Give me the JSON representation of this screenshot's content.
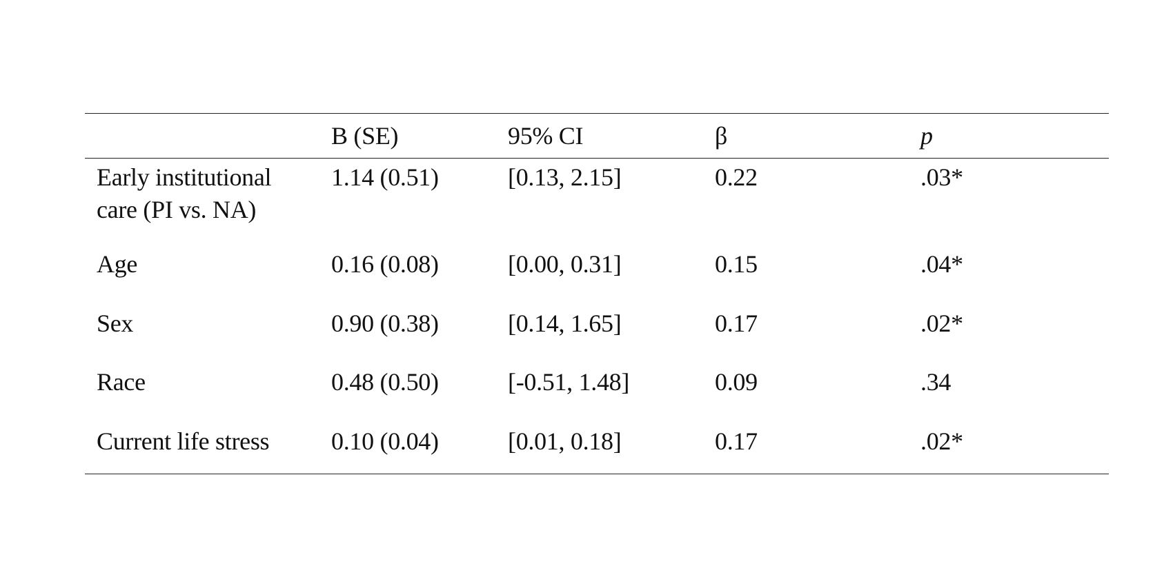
{
  "table": {
    "headers": {
      "predictor": "",
      "b_se": "B (SE)",
      "ci": "95% CI",
      "beta": "β",
      "p": "p"
    },
    "rows": [
      {
        "predictor_line1": "Early institutional",
        "predictor_line2": "care (PI vs. NA)",
        "b_se": "1.14 (0.51)",
        "ci": "[0.13, 2.15]",
        "beta": "0.22",
        "p": ".03*"
      },
      {
        "predictor_line1": "Age",
        "predictor_line2": "",
        "b_se": "0.16 (0.08)",
        "ci": "[0.00, 0.31]",
        "beta": "0.15",
        "p": ".04*"
      },
      {
        "predictor_line1": "Sex",
        "predictor_line2": "",
        "b_se": "0.90 (0.38)",
        "ci": "[0.14, 1.65]",
        "beta": "0.17",
        "p": ".02*"
      },
      {
        "predictor_line1": "Race",
        "predictor_line2": "",
        "b_se": "0.48 (0.50)",
        "ci": "[-0.51, 1.48]",
        "beta": "0.09",
        "p": ".34"
      },
      {
        "predictor_line1": "Current life stress",
        "predictor_line2": "",
        "b_se": "0.10 (0.04)",
        "ci": "[0.01, 0.18]",
        "beta": "0.17",
        "p": ".02*"
      }
    ]
  }
}
